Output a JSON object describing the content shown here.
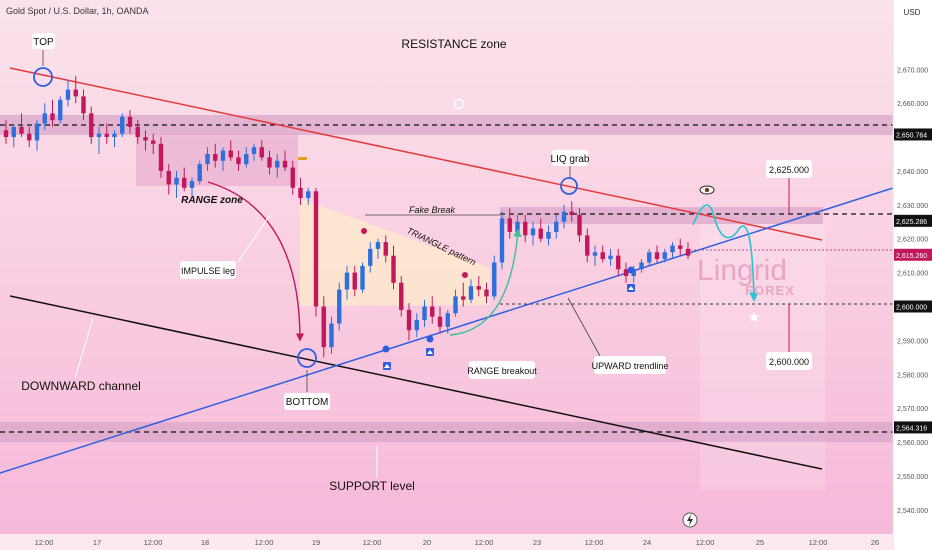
{
  "header": {
    "symbol_title": "Gold Spot / U.S. Dollar, 1h, OANDA",
    "currency": "USD"
  },
  "colors": {
    "background_top": "#fbe3ec",
    "background_bottom": "#f6b7d9",
    "bull_candle": "#2f6fdb",
    "bear_candle": "#c2185b",
    "resistance_line": "#e53939",
    "channel_line": "#111111",
    "trendline": "#2f5fe0",
    "zone": "#d9a7c9",
    "triangle_fill": "#fde7cf",
    "projection": "#29c4d3"
  },
  "chart_data": {
    "type": "candlestick",
    "timeframe": "1h",
    "y_axis": {
      "ticks": [
        "2,670.000",
        "2,660.000",
        "2,650.000",
        "2,640.000",
        "2,630.000",
        "2,620.000",
        "2,610.000",
        "2,600.000",
        "2,590.000",
        "2,580.000",
        "2,570.000",
        "2,560.000",
        "2,550.000",
        "2,540.000"
      ],
      "tick_values": [
        2670,
        2660,
        2650,
        2640,
        2630,
        2620,
        2610,
        2600,
        2590,
        2580,
        2570,
        2560,
        2550,
        2540
      ],
      "range": [
        2537,
        2681
      ]
    },
    "x_axis": {
      "ticks": [
        "12:00",
        "17",
        "12:00",
        "18",
        "12:00",
        "19",
        "12:00",
        "20",
        "12:00",
        "23",
        "12:00",
        "24",
        "12:00",
        "25",
        "12:00",
        "26"
      ]
    },
    "price_levels": [
      {
        "label": "2,650.764",
        "value": 2650.764,
        "style": "dashed"
      },
      {
        "label": "2,625.286",
        "value": 2625.286,
        "style": "dashed"
      },
      {
        "label": "2,615.260",
        "value": 2615.26,
        "style": "current"
      },
      {
        "label": "2,600.000",
        "value": 2600.0,
        "style": "dotted"
      },
      {
        "label": "2,564.316",
        "value": 2564.316,
        "style": "dashed"
      }
    ],
    "ohlc": [
      {
        "o": 2652,
        "h": 2655,
        "l": 2648,
        "c": 2650
      },
      {
        "o": 2650,
        "h": 2654,
        "l": 2647,
        "c": 2653
      },
      {
        "o": 2653,
        "h": 2657,
        "l": 2650,
        "c": 2651
      },
      {
        "o": 2651,
        "h": 2653,
        "l": 2647,
        "c": 2649
      },
      {
        "o": 2649,
        "h": 2655,
        "l": 2646,
        "c": 2654
      },
      {
        "o": 2654,
        "h": 2660,
        "l": 2652,
        "c": 2657
      },
      {
        "o": 2657,
        "h": 2661,
        "l": 2653,
        "c": 2655
      },
      {
        "o": 2655,
        "h": 2662,
        "l": 2654,
        "c": 2661
      },
      {
        "o": 2661,
        "h": 2667,
        "l": 2659,
        "c": 2664
      },
      {
        "o": 2664,
        "h": 2668,
        "l": 2660,
        "c": 2662
      },
      {
        "o": 2662,
        "h": 2664,
        "l": 2655,
        "c": 2657
      },
      {
        "o": 2657,
        "h": 2659,
        "l": 2648,
        "c": 2650
      },
      {
        "o": 2650,
        "h": 2653,
        "l": 2645,
        "c": 2651
      },
      {
        "o": 2651,
        "h": 2654,
        "l": 2648,
        "c": 2650
      },
      {
        "o": 2650,
        "h": 2652,
        "l": 2647,
        "c": 2651
      },
      {
        "o": 2651,
        "h": 2657,
        "l": 2650,
        "c": 2656
      },
      {
        "o": 2656,
        "h": 2658,
        "l": 2651,
        "c": 2653
      },
      {
        "o": 2653,
        "h": 2655,
        "l": 2648,
        "c": 2650
      },
      {
        "o": 2650,
        "h": 2652,
        "l": 2646,
        "c": 2649
      },
      {
        "o": 2649,
        "h": 2651,
        "l": 2645,
        "c": 2648
      },
      {
        "o": 2648,
        "h": 2650,
        "l": 2638,
        "c": 2640
      },
      {
        "o": 2640,
        "h": 2642,
        "l": 2633,
        "c": 2636
      },
      {
        "o": 2636,
        "h": 2640,
        "l": 2632,
        "c": 2638
      },
      {
        "o": 2638,
        "h": 2641,
        "l": 2634,
        "c": 2635
      },
      {
        "o": 2635,
        "h": 2638,
        "l": 2632,
        "c": 2637
      },
      {
        "o": 2637,
        "h": 2643,
        "l": 2636,
        "c": 2642
      },
      {
        "o": 2642,
        "h": 2647,
        "l": 2640,
        "c": 2645
      },
      {
        "o": 2645,
        "h": 2648,
        "l": 2641,
        "c": 2643
      },
      {
        "o": 2643,
        "h": 2647,
        "l": 2640,
        "c": 2646
      },
      {
        "o": 2646,
        "h": 2649,
        "l": 2643,
        "c": 2644
      },
      {
        "o": 2644,
        "h": 2646,
        "l": 2640,
        "c": 2642
      },
      {
        "o": 2642,
        "h": 2647,
        "l": 2641,
        "c": 2645
      },
      {
        "o": 2645,
        "h": 2648,
        "l": 2643,
        "c": 2647
      },
      {
        "o": 2647,
        "h": 2649,
        "l": 2643,
        "c": 2644
      },
      {
        "o": 2644,
        "h": 2646,
        "l": 2639,
        "c": 2641
      },
      {
        "o": 2641,
        "h": 2645,
        "l": 2638,
        "c": 2643
      },
      {
        "o": 2643,
        "h": 2646,
        "l": 2640,
        "c": 2641
      },
      {
        "o": 2641,
        "h": 2643,
        "l": 2633,
        "c": 2635
      },
      {
        "o": 2635,
        "h": 2638,
        "l": 2630,
        "c": 2632
      },
      {
        "o": 2632,
        "h": 2635,
        "l": 2630,
        "c": 2634
      },
      {
        "o": 2634,
        "h": 2635,
        "l": 2597,
        "c": 2600
      },
      {
        "o": 2600,
        "h": 2603,
        "l": 2585,
        "c": 2588
      },
      {
        "o": 2588,
        "h": 2597,
        "l": 2586,
        "c": 2595
      },
      {
        "o": 2595,
        "h": 2607,
        "l": 2593,
        "c": 2605
      },
      {
        "o": 2605,
        "h": 2612,
        "l": 2602,
        "c": 2610
      },
      {
        "o": 2610,
        "h": 2612,
        "l": 2603,
        "c": 2605
      },
      {
        "o": 2605,
        "h": 2613,
        "l": 2604,
        "c": 2612
      },
      {
        "o": 2612,
        "h": 2619,
        "l": 2610,
        "c": 2617
      },
      {
        "o": 2617,
        "h": 2620,
        "l": 2614,
        "c": 2619
      },
      {
        "o": 2619,
        "h": 2621,
        "l": 2613,
        "c": 2615
      },
      {
        "o": 2615,
        "h": 2618,
        "l": 2605,
        "c": 2607
      },
      {
        "o": 2607,
        "h": 2609,
        "l": 2597,
        "c": 2599
      },
      {
        "o": 2599,
        "h": 2601,
        "l": 2590,
        "c": 2593
      },
      {
        "o": 2593,
        "h": 2598,
        "l": 2591,
        "c": 2596
      },
      {
        "o": 2596,
        "h": 2602,
        "l": 2594,
        "c": 2600
      },
      {
        "o": 2600,
        "h": 2603,
        "l": 2595,
        "c": 2597
      },
      {
        "o": 2597,
        "h": 2600,
        "l": 2592,
        "c": 2594
      },
      {
        "o": 2594,
        "h": 2599,
        "l": 2592,
        "c": 2598
      },
      {
        "o": 2598,
        "h": 2605,
        "l": 2597,
        "c": 2603
      },
      {
        "o": 2603,
        "h": 2607,
        "l": 2600,
        "c": 2602
      },
      {
        "o": 2602,
        "h": 2608,
        "l": 2601,
        "c": 2606
      },
      {
        "o": 2606,
        "h": 2609,
        "l": 2603,
        "c": 2605
      },
      {
        "o": 2605,
        "h": 2607,
        "l": 2601,
        "c": 2603
      },
      {
        "o": 2603,
        "h": 2615,
        "l": 2602,
        "c": 2613
      },
      {
        "o": 2613,
        "h": 2628,
        "l": 2611,
        "c": 2626
      },
      {
        "o": 2626,
        "h": 2629,
        "l": 2620,
        "c": 2622
      },
      {
        "o": 2622,
        "h": 2627,
        "l": 2620,
        "c": 2625
      },
      {
        "o": 2625,
        "h": 2627,
        "l": 2619,
        "c": 2621
      },
      {
        "o": 2621,
        "h": 2625,
        "l": 2618,
        "c": 2623
      },
      {
        "o": 2623,
        "h": 2626,
        "l": 2619,
        "c": 2620
      },
      {
        "o": 2620,
        "h": 2624,
        "l": 2618,
        "c": 2622
      },
      {
        "o": 2622,
        "h": 2627,
        "l": 2620,
        "c": 2625
      },
      {
        "o": 2625,
        "h": 2630,
        "l": 2623,
        "c": 2628
      },
      {
        "o": 2628,
        "h": 2631,
        "l": 2625,
        "c": 2627
      },
      {
        "o": 2627,
        "h": 2629,
        "l": 2619,
        "c": 2621
      },
      {
        "o": 2621,
        "h": 2623,
        "l": 2613,
        "c": 2615
      },
      {
        "o": 2615,
        "h": 2618,
        "l": 2612,
        "c": 2616
      },
      {
        "o": 2616,
        "h": 2618,
        "l": 2613,
        "c": 2614
      },
      {
        "o": 2614,
        "h": 2617,
        "l": 2612,
        "c": 2615
      },
      {
        "o": 2615,
        "h": 2617,
        "l": 2609,
        "c": 2611
      },
      {
        "o": 2611,
        "h": 2613,
        "l": 2607,
        "c": 2609
      },
      {
        "o": 2609,
        "h": 2612,
        "l": 2607,
        "c": 2611
      },
      {
        "o": 2611,
        "h": 2614,
        "l": 2610,
        "c": 2613
      },
      {
        "o": 2613,
        "h": 2617,
        "l": 2612,
        "c": 2616
      },
      {
        "o": 2616,
        "h": 2618,
        "l": 2613,
        "c": 2614
      },
      {
        "o": 2614,
        "h": 2617,
        "l": 2613,
        "c": 2616
      },
      {
        "o": 2616,
        "h": 2619,
        "l": 2614,
        "c": 2618
      },
      {
        "o": 2618,
        "h": 2620,
        "l": 2615,
        "c": 2617
      },
      {
        "o": 2617,
        "h": 2619,
        "l": 2614,
        "c": 2615
      }
    ],
    "annotations": {
      "top": "TOP",
      "bottom": "BOTTOM",
      "resistance_zone": "RESISTANCE zone",
      "range_zone": "RANGE zone",
      "impulse_leg": "IMPULSE leg",
      "downward_channel": "DOWNWARD channel",
      "support_level": "SUPPORT level",
      "fake_break": "Fake Break",
      "triangle_pattern": "TRIANGLE pattern",
      "range_breakout": "RANGE breakout",
      "upward_trendline": "UPWARD trendline",
      "liq_grab": "LIQ grab",
      "target_high": "2,625.000",
      "target_low": "2,600.000"
    },
    "watermark": {
      "line1": "Lingrid",
      "line2": "FOREX"
    }
  }
}
